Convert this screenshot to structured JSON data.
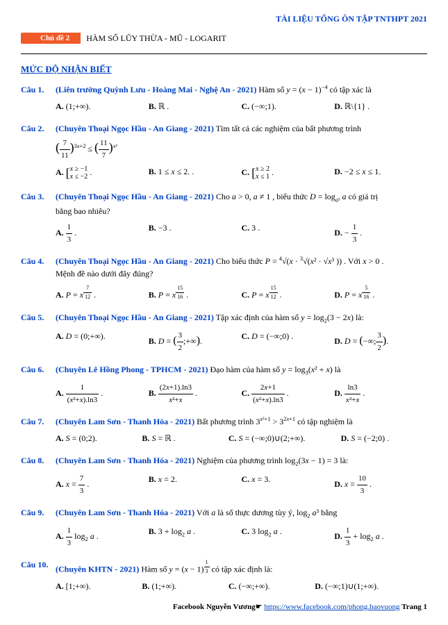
{
  "header": {
    "title": "TÀI LIỆU TỔNG ÔN TẬP TNTHPT 2021"
  },
  "chapter": {
    "badge": "Chủ đề 2",
    "name": "HÀM SỐ LŨY THỪA - MŨ - LOGARIT"
  },
  "section": {
    "title": "MỨC ĐỘ NHẬN BIẾT"
  },
  "colors": {
    "blue": "#0040c0",
    "orange": "#f05a28",
    "text": "#000000",
    "background": "#ffffff"
  },
  "typography": {
    "body_fontsize_pt": 12,
    "title_fontsize_pt": 13,
    "font_family": "Times New Roman"
  },
  "questions": [
    {
      "num": "Câu 1.",
      "source": "(Liên trường Quỳnh Lưu - Hoàng Mai - Nghệ An - 2021)",
      "text": "Hàm số  y = (x − 1)⁻⁴  có tập xác là",
      "choices": {
        "A": "(1; +∞).",
        "B": "ℝ .",
        "C": "(−∞; 1).",
        "D": "ℝ \\ {1} ."
      }
    },
    {
      "num": "Câu 2.",
      "source": "(Chuyên Thoại Ngọc Hầu - An Giang - 2021)",
      "text": "Tìm tất cả các nghiệm của bất phương trình",
      "equation_html": "(7/11)<sup>3x+2</sup> ≤ (11/7)<sup>x²</sup>",
      "choices": {
        "A": "[ x ≥ −1 ; x ≤ −2 .",
        "B": "1 ≤ x ≤ 2. .",
        "C": "[ x ≥ 2 ; x ≤ 1 .",
        "D": "−2 ≤ x ≤ 1."
      }
    },
    {
      "num": "Câu 3.",
      "source": "(Chuyên Thoại Ngọc Hầu - An Giang - 2021)",
      "text_a": "Cho  a > 0, a ≠ 1 , biểu thức  D = log",
      "text_sub": "a³",
      "text_b": " a  có giá trị",
      "text2": "bằng bao nhiêu?",
      "choices": {
        "A": "1/3 .",
        "B": "−3 .",
        "C": "3 .",
        "D": "− 1/3 ."
      }
    },
    {
      "num": "Câu 4.",
      "source": "(Chuyên Thoại Ngọc Hầu - An Giang - 2021)",
      "text": "Cho biểu thức  P = ⁴√( x · ³√( x² · √x³ ) )  . Với  x > 0 .",
      "text2": "Mệnh đề nào dưới đây đúng?",
      "choices": {
        "A": "P = x^(7/12) .",
        "B": "P = x^(15/16) .",
        "C": "P = x^(15/12) .",
        "D": "P = x^(5/16) ."
      }
    },
    {
      "num": "Câu 5.",
      "source": "(Chuyên Thoại Ngọc Hầu - An Giang - 2021)",
      "text": "Tập xác định của hàm số  y = log₂(3 − 2x)  là:",
      "choices": {
        "A": "D = (0; +∞).",
        "B": "D = (3/2 ; +∞).",
        "C": "D = (−∞; 0) .",
        "D": "D = (−∞; 3/2)."
      }
    },
    {
      "num": "Câu 6.",
      "source": "(Chuyên Lê Hồng Phong - TPHCM - 2021)",
      "text": "Đạo hàm của hàm số  y = log₃(x² + x)  là",
      "choices": {
        "A": "1 / ((x² + x)·ln3) .",
        "B": "(2x + 1)·ln3 / (x² + x) .",
        "C": "(2x + 1) / ((x² + x)·ln3) .",
        "D": "ln3 / (x² + x) ."
      }
    },
    {
      "num": "Câu 7.",
      "source": "(Chuyên Lam Sơn - Thanh Hóa - 2021)",
      "text": "Bất phương trình  3^(x²+1) > 3^(2x+1)  có tập nghiệm là",
      "choices": {
        "A": "S = (0; 2).",
        "B": "S = ℝ .",
        "C": "S = (−∞; 0) ∪ (2; +∞).",
        "D": "S = (−2; 0) ."
      }
    },
    {
      "num": "Câu 8.",
      "source": "(Chuyên Lam Sơn - Thanh Hóa - 2021)",
      "text": "Nghiệm của phương trình  log₂(3x − 1) = 3  là:",
      "choices": {
        "A": "x = 7/3 .",
        "B": "x = 2.",
        "C": "x = 3.",
        "D": "x = 10/3 ."
      }
    },
    {
      "num": "Câu 9.",
      "source": "(Chuyên Lam Sơn - Thanh Hóa - 2021)",
      "text": "Với  a  là số thực dương tùy ý,  log₂ a³  bằng",
      "choices": {
        "A": "(1/3) log₂ a .",
        "B": "3 + log₂ a .",
        "C": "3 log₂ a .",
        "D": "(1/3) + log₂ a ."
      }
    },
    {
      "num": "Câu 10.",
      "source": "(Chuyên KHTN - 2021)",
      "text": "Hàm số  y = (x − 1)^(1/3)  có tập xác định là:",
      "choices": {
        "A": "[1; +∞).",
        "B": "(1; +∞).",
        "C": "(−∞; +∞).",
        "D": "(−∞; 1) ∪ (1; +∞)."
      }
    }
  ],
  "footer": {
    "fb": "Facebook Nguyễn Vương",
    "url_label": "https://www.facebook.com/phong.baovuong",
    "page": "Trang 1"
  }
}
